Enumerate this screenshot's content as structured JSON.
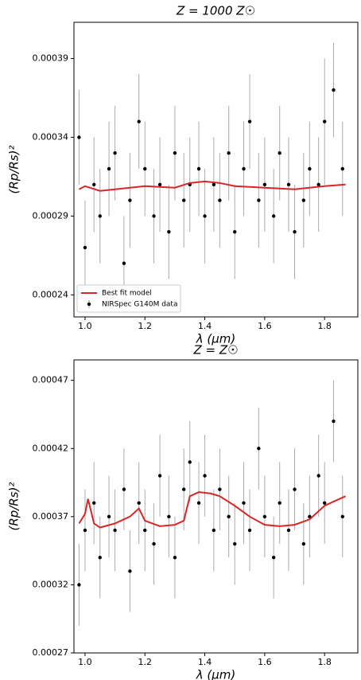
{
  "chart_data": [
    {
      "type": "scatter",
      "title": "Z = 1000 Z☉",
      "xlabel": "λ (μm)",
      "ylabel": "(Rp/Rs)²",
      "legend": "lower left",
      "xlim": [
        0.963,
        1.911
      ],
      "ylim": [
        0.000226,
        0.000413
      ],
      "xticks": [
        {
          "value": 1,
          "label": "1.0"
        },
        1.2,
        1.4,
        1.6,
        1.8
      ],
      "yticks": [
        0.00024,
        0.00029,
        0.00034,
        0.00039
      ],
      "series": [
        {
          "name": "Best fit model",
          "color": "#d62728",
          "kind": "line",
          "x": [
            0.98,
            1.0,
            1.05,
            1.1,
            1.2,
            1.3,
            1.35,
            1.4,
            1.45,
            1.5,
            1.6,
            1.7,
            1.8,
            1.87
          ],
          "values": [
            0.000307,
            0.000309,
            0.000306,
            0.000307,
            0.000309,
            0.000308,
            0.000311,
            0.000312,
            0.000311,
            0.000309,
            0.000308,
            0.000307,
            0.000309,
            0.00031
          ]
        },
        {
          "name": "NIRSpec G140M data",
          "color": "#000000",
          "kind": "errorbar",
          "x": [
            0.98,
            1.0,
            1.03,
            1.05,
            1.08,
            1.1,
            1.13,
            1.15,
            1.18,
            1.2,
            1.23,
            1.25,
            1.28,
            1.3,
            1.33,
            1.35,
            1.38,
            1.4,
            1.43,
            1.45,
            1.48,
            1.5,
            1.53,
            1.55,
            1.58,
            1.6,
            1.63,
            1.65,
            1.68,
            1.7,
            1.73,
            1.75,
            1.78,
            1.8,
            1.83,
            1.86
          ],
          "values": [
            0.00034,
            0.00027,
            0.00031,
            0.00029,
            0.00032,
            0.00033,
            0.00026,
            0.0003,
            0.00035,
            0.00032,
            0.00029,
            0.00031,
            0.00028,
            0.00033,
            0.0003,
            0.00031,
            0.00032,
            0.00029,
            0.00031,
            0.0003,
            0.00033,
            0.00028,
            0.00032,
            0.00035,
            0.0003,
            0.00031,
            0.00029,
            0.00033,
            0.00031,
            0.00028,
            0.0003,
            0.00032,
            0.00031,
            0.00035,
            0.00037,
            0.00032
          ],
          "errors": [
            3e-05,
            3e-05,
            3e-05,
            3e-05,
            3e-05,
            3e-05,
            3e-05,
            3e-05,
            3e-05,
            3e-05,
            3e-05,
            3e-05,
            3e-05,
            3e-05,
            3e-05,
            3e-05,
            3e-05,
            3e-05,
            3e-05,
            3e-05,
            3e-05,
            3e-05,
            3e-05,
            3e-05,
            3e-05,
            3e-05,
            3e-05,
            3e-05,
            3e-05,
            3e-05,
            3e-05,
            3e-05,
            3e-05,
            4e-05,
            3e-05,
            3e-05
          ]
        }
      ]
    },
    {
      "type": "scatter",
      "title": "Z = Z☉",
      "xlabel": "λ (μm)",
      "ylabel": "(Rp/Rs)²",
      "xlim": [
        0.963,
        1.911
      ],
      "ylim": [
        0.00027,
        0.000485
      ],
      "xticks": [
        {
          "value": 1,
          "label": "1.0"
        },
        1.2,
        1.4,
        1.6,
        1.8
      ],
      "yticks": [
        0.00027,
        0.00032,
        0.00037,
        0.00042,
        0.00047
      ],
      "series": [
        {
          "color": "#d62728",
          "kind": "line",
          "x": [
            0.98,
            1.0,
            1.01,
            1.03,
            1.05,
            1.1,
            1.15,
            1.18,
            1.2,
            1.25,
            1.3,
            1.33,
            1.35,
            1.38,
            1.42,
            1.45,
            1.5,
            1.55,
            1.6,
            1.65,
            1.7,
            1.75,
            1.8,
            1.85,
            1.87
          ],
          "values": [
            0.000365,
            0.000372,
            0.000383,
            0.000365,
            0.000362,
            0.000365,
            0.00037,
            0.000376,
            0.000367,
            0.000363,
            0.000364,
            0.000367,
            0.000385,
            0.000388,
            0.000387,
            0.000385,
            0.000378,
            0.00037,
            0.000364,
            0.000363,
            0.000364,
            0.000368,
            0.000378,
            0.000383,
            0.000385
          ]
        },
        {
          "color": "#000000",
          "kind": "errorbar",
          "x": [
            0.98,
            1.0,
            1.03,
            1.05,
            1.08,
            1.1,
            1.13,
            1.15,
            1.18,
            1.2,
            1.23,
            1.25,
            1.28,
            1.3,
            1.33,
            1.35,
            1.38,
            1.4,
            1.43,
            1.45,
            1.48,
            1.5,
            1.53,
            1.55,
            1.58,
            1.6,
            1.63,
            1.65,
            1.68,
            1.7,
            1.73,
            1.75,
            1.78,
            1.8,
            1.83,
            1.86
          ],
          "values": [
            0.00032,
            0.00036,
            0.00038,
            0.00034,
            0.00037,
            0.00036,
            0.00039,
            0.00033,
            0.00038,
            0.00036,
            0.00035,
            0.0004,
            0.00037,
            0.00034,
            0.00039,
            0.00041,
            0.00038,
            0.0004,
            0.00036,
            0.00039,
            0.00037,
            0.00035,
            0.00038,
            0.00036,
            0.00042,
            0.00037,
            0.00034,
            0.00038,
            0.00036,
            0.00039,
            0.00035,
            0.00037,
            0.0004,
            0.00038,
            0.00044,
            0.00037
          ],
          "errors": [
            3e-05,
            3e-05,
            3e-05,
            3e-05,
            3e-05,
            3e-05,
            3e-05,
            3e-05,
            3e-05,
            3e-05,
            3e-05,
            3e-05,
            3e-05,
            3e-05,
            3e-05,
            3e-05,
            3e-05,
            3e-05,
            3e-05,
            3e-05,
            3e-05,
            3e-05,
            3e-05,
            3e-05,
            3e-05,
            3e-05,
            3e-05,
            3e-05,
            3e-05,
            3e-05,
            3e-05,
            3e-05,
            3e-05,
            3e-05,
            3e-05,
            3e-05
          ]
        }
      ]
    }
  ]
}
